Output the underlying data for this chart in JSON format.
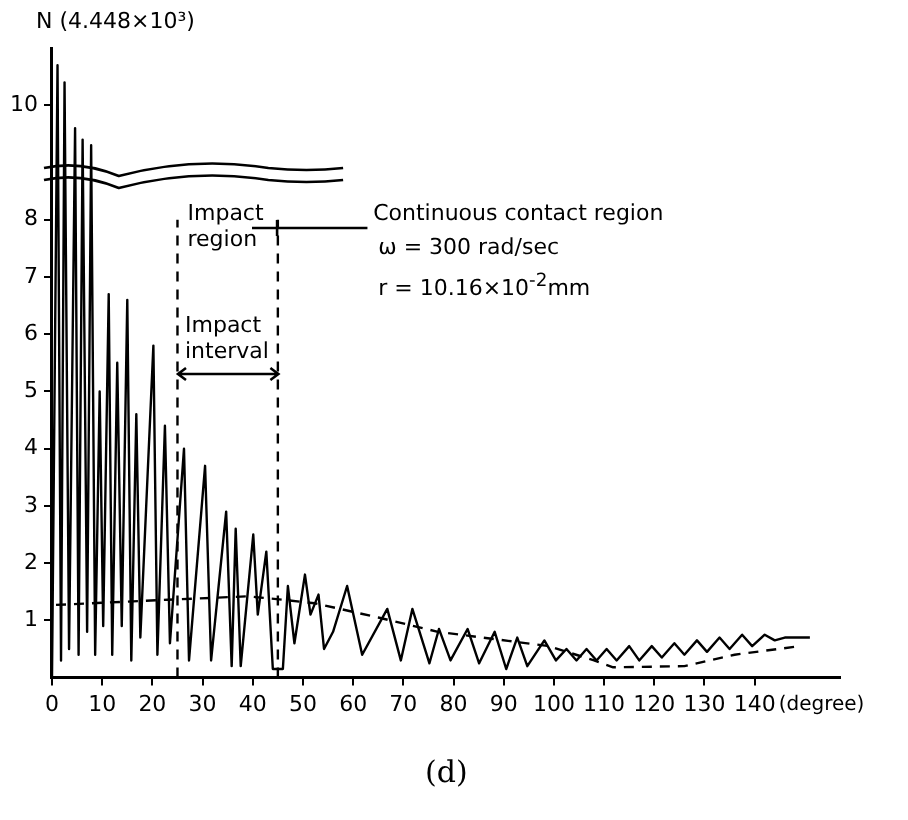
{
  "chart_data": {
    "type": "line",
    "ylabel": "N (4.448×10³)",
    "xlabel": "(degree)",
    "xlim": [
      0,
      157
    ],
    "xticks": [
      0,
      10,
      20,
      30,
      40,
      50,
      60,
      70,
      80,
      90,
      100,
      110,
      120,
      130,
      140
    ],
    "ylim": [
      0,
      11
    ],
    "yticks": [
      1,
      2,
      3,
      4,
      5,
      6,
      7,
      8,
      10
    ],
    "legend": false,
    "marker": "none",
    "annotations": [
      "Impact region",
      "Impact interval",
      "Continuous contact region",
      "ω = 300 rad/sec",
      "r = 10.16×10$^{-2}$mm",
      "(d)"
    ],
    "ref_lines": [
      {
        "axis": "x",
        "value": 25,
        "color": "#000000",
        "line_style": "dashed"
      },
      {
        "axis": "x",
        "value": 45,
        "color": "#000000",
        "line_style": "dashed"
      }
    ],
    "series": [
      {
        "color": "#000000",
        "line_style": "solid",
        "x": [
          0,
          1.1,
          1.8,
          2.5,
          3.4,
          4.6,
          5.3,
          6.1,
          7,
          7.8,
          8.6,
          9.5,
          10.2,
          11.3,
          12,
          13,
          13.9,
          15,
          15.8,
          16.8,
          17.6,
          20.2,
          21,
          22.5,
          23.5,
          26.3,
          27.3,
          30.5,
          31.7,
          34.7,
          35.8,
          36.6,
          37.6,
          40.1,
          41,
          42.7,
          44,
          46,
          47,
          48.3,
          50.4,
          51.5,
          53.1,
          54.2,
          56,
          58.8,
          61.8,
          66.8,
          69.5,
          71.8,
          75.2,
          77.1,
          79.4,
          82.8,
          85.1,
          88.2,
          90.5,
          92.7,
          94.7,
          98.1,
          100.4,
          102.5,
          104.5,
          106.5,
          108.5,
          110.5,
          112.5,
          115,
          117,
          119.5,
          121.5,
          124,
          126,
          128.5,
          130.5,
          133,
          135,
          137.5,
          139.5,
          142,
          144,
          146,
          151
        ],
        "values": [
          0,
          10.7,
          0.3,
          10.4,
          0.5,
          9.6,
          0.4,
          9.4,
          0.8,
          9.3,
          0.4,
          5,
          0.9,
          6.7,
          0.4,
          5.5,
          0.9,
          6.6,
          0.3,
          4.6,
          0.7,
          5.8,
          0.4,
          4.4,
          0.6,
          4,
          0.3,
          3.7,
          0.3,
          2.9,
          0.2,
          2.6,
          0.2,
          2.5,
          1.1,
          2.2,
          0.15,
          0.15,
          1.6,
          0.6,
          1.8,
          1.1,
          1.45,
          0.5,
          0.8,
          1.6,
          0.4,
          1.2,
          0.3,
          1.2,
          0.25,
          0.85,
          0.3,
          0.85,
          0.25,
          0.8,
          0.15,
          0.7,
          0.2,
          0.65,
          0.3,
          0.5,
          0.3,
          0.5,
          0.3,
          0.5,
          0.3,
          0.55,
          0.3,
          0.55,
          0.35,
          0.6,
          0.4,
          0.65,
          0.45,
          0.7,
          0.5,
          0.75,
          0.55,
          0.75,
          0.65,
          0.7,
          0.7
        ]
      },
      {
        "color": "#000000",
        "line_style": "dashed",
        "x": [
          0.8,
          23,
          39,
          46,
          52.3,
          65,
          76.9,
          99,
          108,
          111.8,
          126,
          136,
          149
        ],
        "values": [
          1.27,
          1.36,
          1.42,
          1.36,
          1.3,
          1.05,
          0.8,
          0.55,
          0.3,
          0.18,
          0.2,
          0.4,
          0.55
        ]
      }
    ]
  }
}
